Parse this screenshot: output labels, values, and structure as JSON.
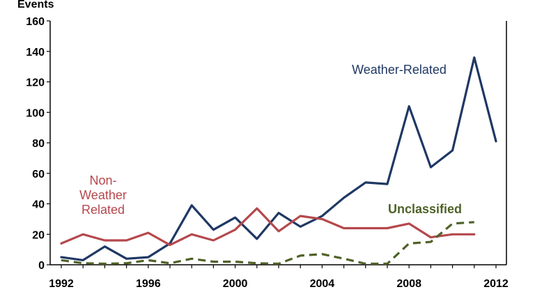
{
  "chart_data": {
    "type": "line",
    "title": "",
    "ylabel": "Events",
    "xlabel": "",
    "xlim": [
      1992,
      2012
    ],
    "ylim": [
      0,
      160
    ],
    "xticks": [
      1992,
      1996,
      2000,
      2004,
      2008,
      2012
    ],
    "yticks": [
      0,
      20,
      40,
      60,
      80,
      100,
      120,
      140,
      160
    ],
    "grid": false,
    "series": [
      {
        "name": "Weather-Related",
        "color": "#1F3864",
        "style": "solid",
        "label_lines": [
          "Weather-Related"
        ],
        "x": [
          1992,
          1993,
          1994,
          1995,
          1996,
          1997,
          1998,
          1999,
          2000,
          2001,
          2002,
          2003,
          2004,
          2005,
          2006,
          2007,
          2008,
          2009,
          2010,
          2011,
          2012
        ],
        "values": [
          5,
          3,
          12,
          4,
          5,
          14,
          39,
          23,
          31,
          17,
          34,
          25,
          32,
          44,
          54,
          53,
          104,
          64,
          75,
          136,
          81
        ]
      },
      {
        "name": "Non-Weather Related",
        "color": "#B5484C",
        "style": "solid",
        "label_lines": [
          "Non-",
          "Weather",
          "Related"
        ],
        "x": [
          1992,
          1993,
          1994,
          1995,
          1996,
          1997,
          1998,
          1999,
          2000,
          2001,
          2002,
          2003,
          2004,
          2005,
          2006,
          2007,
          2008,
          2009,
          2010,
          2011
        ],
        "values": [
          14,
          20,
          16,
          16,
          21,
          13,
          20,
          16,
          23,
          37,
          22,
          32,
          30,
          24,
          24,
          24,
          27,
          18,
          20,
          20
        ]
      },
      {
        "name": "Unclassified",
        "color": "#4F6228",
        "style": "dashed",
        "label_lines": [
          "Unclassified"
        ],
        "x": [
          1992,
          1993,
          1994,
          1995,
          1996,
          1997,
          1998,
          1999,
          2000,
          2001,
          2002,
          2003,
          2004,
          2005,
          2006,
          2007,
          2008,
          2009,
          2010,
          2011
        ],
        "values": [
          3,
          1,
          0,
          1,
          3,
          1,
          4,
          2,
          2,
          1,
          0,
          6,
          7,
          4,
          0,
          0,
          14,
          15,
          27,
          28
        ]
      }
    ]
  }
}
